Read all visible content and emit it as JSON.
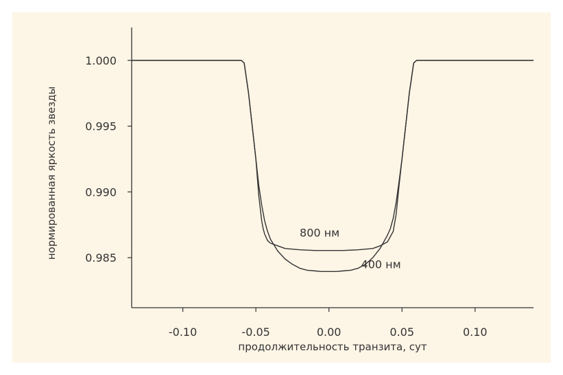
{
  "chart_data": {
    "type": "line",
    "title": "",
    "xlabel": "продолжительность транзита, сут",
    "ylabel": "нормированная яркость звезды",
    "xlim": [
      -0.135,
      0.14
    ],
    "ylim": [
      0.9812,
      1.0025
    ],
    "x_ticks": [
      -0.1,
      -0.05,
      0.0,
      0.05,
      0.1
    ],
    "x_tick_labels": [
      "-0.10",
      "-0.05",
      "0.00",
      "0.05",
      "0.10"
    ],
    "y_ticks": [
      1.0,
      0.995,
      0.99,
      0.985
    ],
    "y_tick_labels": [
      "1.000",
      "0.995",
      "0.990",
      "0.985"
    ],
    "grid": false,
    "line_color": "#333333",
    "series": [
      {
        "name": "800 нм",
        "label_pos": [
          -0.02,
          0.9866
        ],
        "x": [
          -0.135,
          -0.06,
          -0.058,
          -0.055,
          -0.052,
          -0.05,
          -0.048,
          -0.046,
          -0.045,
          -0.044,
          -0.042,
          -0.04,
          -0.035,
          -0.03,
          -0.02,
          -0.01,
          0.0,
          0.01,
          0.02,
          0.03,
          0.035,
          0.04,
          0.044,
          0.046,
          0.048,
          0.05,
          0.052,
          0.055,
          0.058,
          0.06,
          0.14
        ],
        "y": [
          1.0,
          1.0,
          0.9998,
          0.9975,
          0.9945,
          0.9925,
          0.9897,
          0.9878,
          0.9872,
          0.9868,
          0.9863,
          0.9861,
          0.9859,
          0.9857,
          0.9856,
          0.98555,
          0.98555,
          0.98555,
          0.9856,
          0.9857,
          0.9859,
          0.9862,
          0.987,
          0.9883,
          0.9905,
          0.9925,
          0.9945,
          0.9975,
          0.9998,
          1.0,
          1.0
        ]
      },
      {
        "name": "400 нм",
        "label_pos": [
          0.022,
          0.9842
        ],
        "x": [
          -0.135,
          -0.06,
          -0.058,
          -0.055,
          -0.052,
          -0.05,
          -0.048,
          -0.046,
          -0.044,
          -0.042,
          -0.04,
          -0.035,
          -0.03,
          -0.025,
          -0.02,
          -0.015,
          -0.01,
          -0.005,
          0.0,
          0.005,
          0.01,
          0.015,
          0.02,
          0.025,
          0.03,
          0.035,
          0.04,
          0.042,
          0.044,
          0.046,
          0.048,
          0.05,
          0.052,
          0.055,
          0.058,
          0.06,
          0.14
        ],
        "y": [
          1.0,
          1.0,
          0.9998,
          0.9975,
          0.9945,
          0.9925,
          0.9905,
          0.989,
          0.9878,
          0.987,
          0.9864,
          0.9855,
          0.9849,
          0.9845,
          0.9842,
          0.98405,
          0.984,
          0.98395,
          0.98395,
          0.98395,
          0.984,
          0.98405,
          0.9842,
          0.9845,
          0.985,
          0.9857,
          0.9867,
          0.9872,
          0.988,
          0.9892,
          0.9908,
          0.9925,
          0.9945,
          0.9975,
          0.9998,
          1.0,
          1.0
        ]
      }
    ]
  }
}
